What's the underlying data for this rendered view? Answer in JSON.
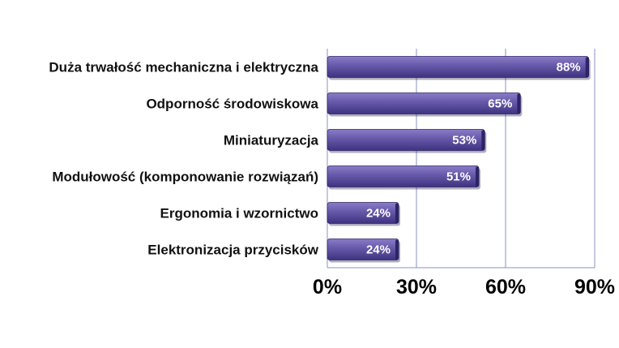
{
  "chart_data": {
    "type": "bar",
    "orientation": "horizontal",
    "categories": [
      "Duża trwałość mechaniczna i elektryczna",
      "Odporność środowiskowa",
      "Miniaturyzacja",
      "Modułowość (komponowanie rozwiązań)",
      "Ergonomia i wzornictwo",
      "Elektronizacja przycisków"
    ],
    "values": [
      88,
      65,
      53,
      51,
      24,
      24
    ],
    "value_labels": [
      "88%",
      "65%",
      "53%",
      "51%",
      "24%",
      "24%"
    ],
    "x_ticks": [
      0,
      30,
      60,
      90
    ],
    "x_tick_labels": [
      "0%",
      "30%",
      "60%",
      "90%"
    ],
    "xlim": [
      0,
      90
    ],
    "title": "",
    "xlabel": "",
    "ylabel": "",
    "grid": "vertical",
    "legend": "none",
    "colors": {
      "bar_light": "#8a7cc8",
      "bar_mid": "#6658a8",
      "bar_dark": "#3e3280",
      "bar_end": "#2c2466",
      "grid": "#8a93c0",
      "axis": "#8a93c0"
    }
  }
}
